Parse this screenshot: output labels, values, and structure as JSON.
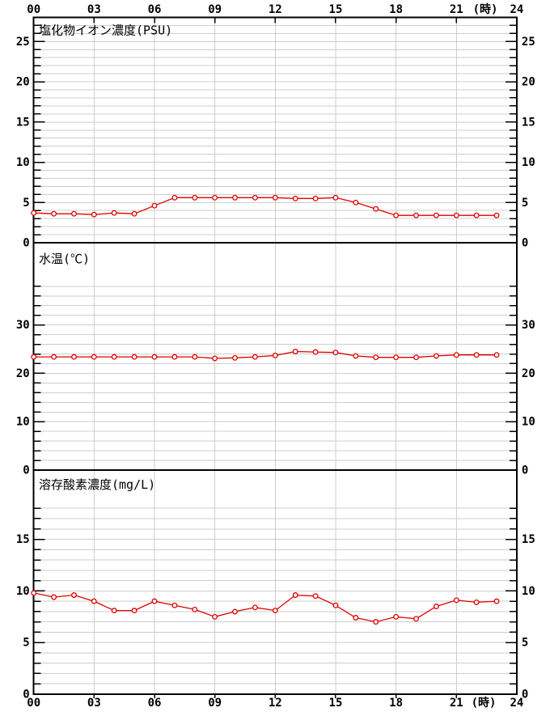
{
  "page": {
    "background": "#ffffff"
  },
  "style": {
    "line_color": "#e00000",
    "marker_fill": "#ffffff",
    "grid_color": "#cdcdcd",
    "axis_color": "#000000",
    "text_color": "#000000"
  },
  "axis": {
    "x_range": [
      0,
      24
    ],
    "x_ticks": [
      0,
      3,
      6,
      9,
      12,
      15,
      18,
      21,
      24
    ],
    "x_tick_labels": [
      "00",
      "03",
      "06",
      "09",
      "12",
      "15",
      "18",
      "21",
      "24"
    ],
    "x_grid_hours": [
      3,
      6,
      9,
      12,
      15,
      18,
      21
    ],
    "x_unit_label": "(時)"
  },
  "chart_data": [
    {
      "type": "line",
      "title": "塩化物イオン濃度(PSU)",
      "ylabel": "PSU",
      "x": [
        0,
        1,
        2,
        3,
        4,
        5,
        6,
        7,
        8,
        9,
        10,
        11,
        12,
        13,
        14,
        15,
        16,
        17,
        18,
        19,
        20,
        21,
        22,
        23
      ],
      "values": [
        3.7,
        3.6,
        3.6,
        3.5,
        3.7,
        3.6,
        4.6,
        5.6,
        5.6,
        5.6,
        5.6,
        5.6,
        5.6,
        5.5,
        5.5,
        5.6,
        5.0,
        4.2,
        3.4,
        3.4,
        3.4,
        3.4,
        3.4,
        3.4
      ],
      "ylim": [
        0,
        28
      ],
      "grid_step": 1,
      "grid_max": 27,
      "ytick_labels": [
        0,
        5,
        10,
        15,
        20,
        25
      ],
      "grid_on": true,
      "legend": "none"
    },
    {
      "type": "line",
      "title": "水温(℃)",
      "ylabel": "℃",
      "x": [
        0,
        1,
        2,
        3,
        4,
        5,
        6,
        7,
        8,
        9,
        10,
        11,
        12,
        13,
        14,
        15,
        16,
        17,
        18,
        19,
        20,
        21,
        22,
        23
      ],
      "values": [
        23.4,
        23.4,
        23.4,
        23.4,
        23.4,
        23.4,
        23.4,
        23.4,
        23.4,
        23.1,
        23.2,
        23.4,
        23.7,
        24.5,
        24.4,
        24.3,
        23.6,
        23.3,
        23.3,
        23.3,
        23.6,
        23.8,
        23.8,
        23.8
      ],
      "ylim": [
        0,
        47
      ],
      "grid_step": 2,
      "grid_max": 38,
      "ytick_labels": [
        0,
        10,
        20,
        30
      ],
      "grid_on": true,
      "legend": "none"
    },
    {
      "type": "line",
      "title": "溶存酸素濃度(mg/L)",
      "ylabel": "mg/L",
      "x": [
        0,
        1,
        2,
        3,
        4,
        5,
        6,
        7,
        8,
        9,
        10,
        11,
        12,
        13,
        14,
        15,
        16,
        17,
        18,
        19,
        20,
        21,
        22,
        23
      ],
      "values": [
        9.8,
        9.4,
        9.6,
        9.0,
        8.1,
        8.1,
        9.0,
        8.6,
        8.2,
        7.5,
        8.0,
        8.4,
        8.1,
        9.6,
        9.5,
        8.6,
        7.4,
        7.0,
        7.5,
        7.3,
        8.5,
        9.1,
        8.9,
        9.0
      ],
      "ylim": [
        0,
        21.7
      ],
      "grid_step": 1,
      "grid_max": 18,
      "ytick_labels": [
        0,
        5,
        10,
        15
      ],
      "grid_on": true,
      "legend": "none"
    }
  ]
}
